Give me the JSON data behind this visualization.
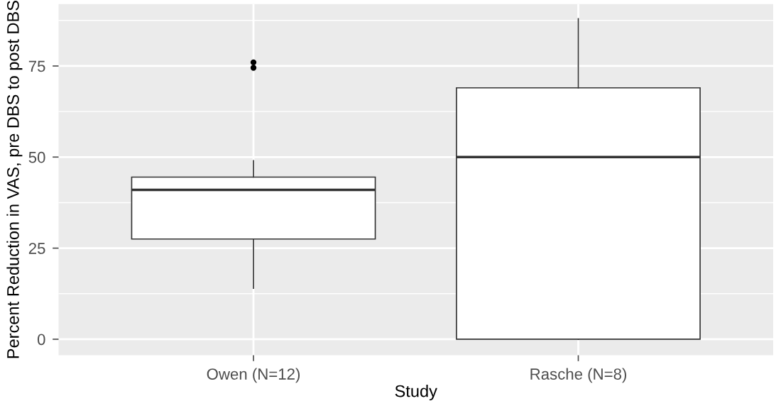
{
  "chart_data": {
    "type": "box",
    "xlabel": "Study",
    "ylabel": "Percent Reduction in VAS, pre DBS to post DBS",
    "categories": [
      "Owen (N=12)",
      "Rasche (N=8)"
    ],
    "boxes": [
      {
        "low": 14,
        "q1": 27.5,
        "median": 41,
        "q3": 44.5,
        "high": 49,
        "outliers": [
          74.5,
          76
        ]
      },
      {
        "low": 0,
        "q1": 0,
        "median": 50,
        "q3": 69,
        "high": 88
      }
    ],
    "color": "#ffffff",
    "ylim": [
      -4.4,
      92
    ],
    "yticks": [
      0,
      25,
      50,
      75
    ],
    "grid": true,
    "legend": false
  }
}
